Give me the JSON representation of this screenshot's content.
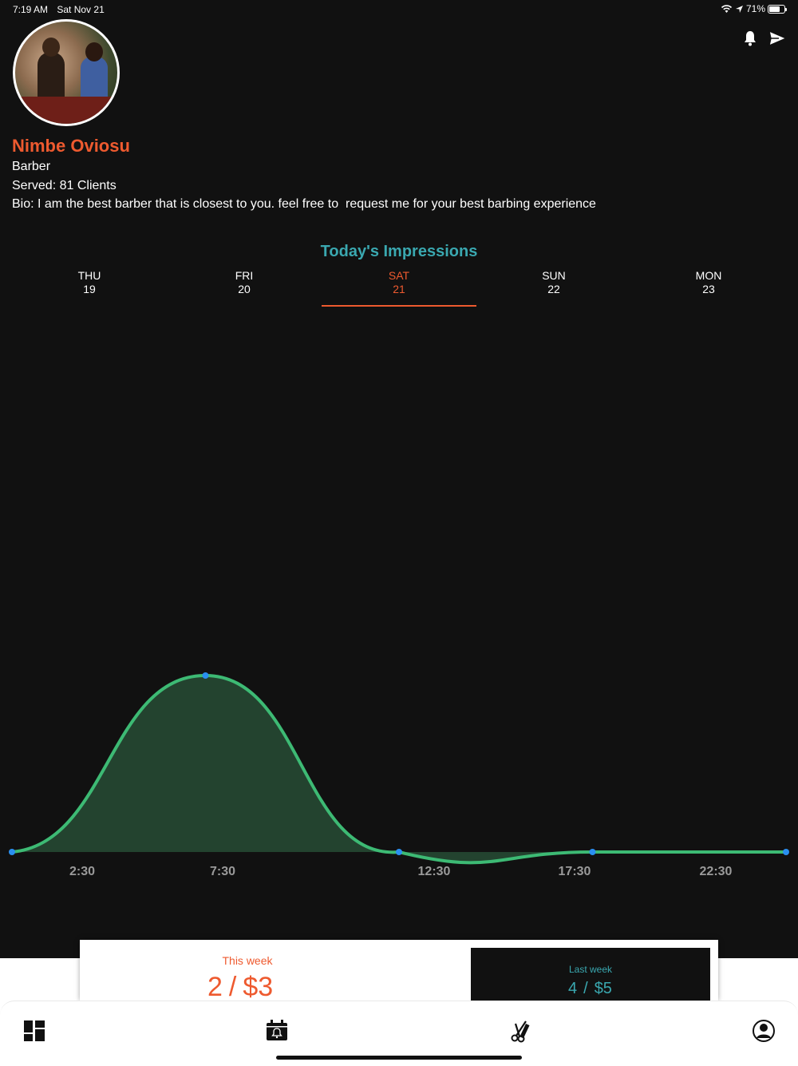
{
  "status_bar": {
    "time": "7:19 AM",
    "date": "Sat Nov 21",
    "battery": "71%",
    "battery_level": 0.71
  },
  "header": {
    "notifications_icon": "bell-icon",
    "send_icon": "send-icon"
  },
  "profile": {
    "name": "Nimbe Oviosu",
    "role": "Barber",
    "served": "Served: 81 Clients",
    "bio": "Bio: I am the best barber that is closest to you. feel free to  request me for your best barbing experience"
  },
  "impressions": {
    "title": "Today's Impressions",
    "days": [
      {
        "dow": "THU",
        "date": "19",
        "active": false
      },
      {
        "dow": "FRI",
        "date": "20",
        "active": false
      },
      {
        "dow": "SAT",
        "date": "21",
        "active": true
      },
      {
        "dow": "SUN",
        "date": "22",
        "active": false
      },
      {
        "dow": "MON",
        "date": "23",
        "active": false
      }
    ]
  },
  "chart_data": {
    "type": "area",
    "x_tick_labels": [
      "2:30",
      "7:30",
      "12:30",
      "17:30",
      "22:30"
    ],
    "x": [
      "0:00",
      "7:00",
      "14:00",
      "21:00",
      "28:00"
    ],
    "values": [
      0,
      1,
      0,
      0,
      0
    ],
    "interpolation": "smooth",
    "colors": {
      "line": "#3dba74",
      "fill": "#23432f",
      "point": "#2a8ff0"
    },
    "grid": false
  },
  "summary": {
    "this_week": {
      "label": "This week",
      "clients": "2",
      "earnings": "$3"
    },
    "last_week": {
      "label": "Last week",
      "clients": "4",
      "earnings": "$5"
    }
  },
  "tab_bar": {
    "items": [
      {
        "icon": "dashboard-icon"
      },
      {
        "icon": "calendar-alarm-icon"
      },
      {
        "icon": "scissors-comb-icon"
      },
      {
        "icon": "profile-icon"
      }
    ]
  }
}
